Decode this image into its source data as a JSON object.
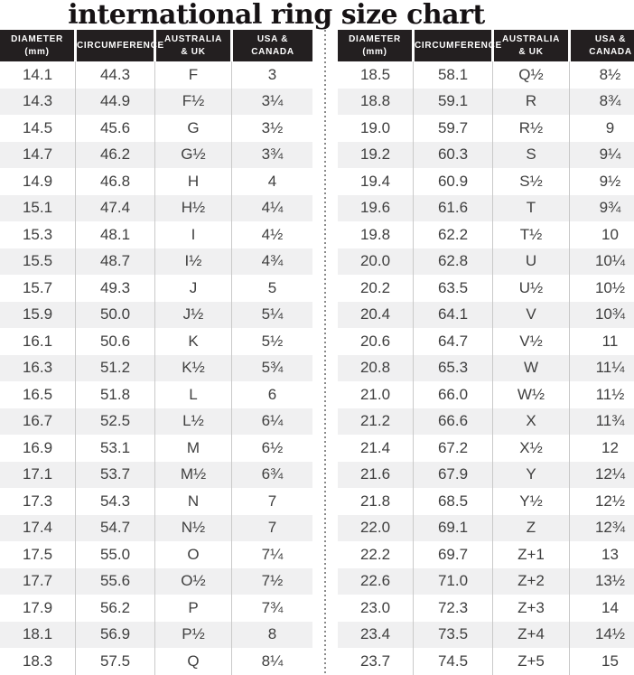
{
  "chart_data": {
    "type": "table",
    "title": "international ring size chart",
    "columns": [
      {
        "label": "DIAMETER (mm)",
        "lines": [
          "DIAMETER",
          "(mm)"
        ]
      },
      {
        "label": "CIRCUMFERENCE",
        "lines": [
          "CIRCUMFERENCE"
        ]
      },
      {
        "label": "AUSTRALIA & UK",
        "lines": [
          "AUSTRALIA",
          "& UK"
        ]
      },
      {
        "label": "USA & CANADA",
        "lines": [
          "USA &",
          "CANADA"
        ]
      }
    ],
    "left_table_rows": [
      [
        "14.1",
        "44.3",
        "F",
        "3"
      ],
      [
        "14.3",
        "44.9",
        "F½",
        "3¼"
      ],
      [
        "14.5",
        "45.6",
        "G",
        "3½"
      ],
      [
        "14.7",
        "46.2",
        "G½",
        "3¾"
      ],
      [
        "14.9",
        "46.8",
        "H",
        "4"
      ],
      [
        "15.1",
        "47.4",
        "H½",
        "4¼"
      ],
      [
        "15.3",
        "48.1",
        "I",
        "4½"
      ],
      [
        "15.5",
        "48.7",
        "I½",
        "4¾"
      ],
      [
        "15.7",
        "49.3",
        "J",
        "5"
      ],
      [
        "15.9",
        "50.0",
        "J½",
        "5¼"
      ],
      [
        "16.1",
        "50.6",
        "K",
        "5½"
      ],
      [
        "16.3",
        "51.2",
        "K½",
        "5¾"
      ],
      [
        "16.5",
        "51.8",
        "L",
        "6"
      ],
      [
        "16.7",
        "52.5",
        "L½",
        "6¼"
      ],
      [
        "16.9",
        "53.1",
        "M",
        "6½"
      ],
      [
        "17.1",
        "53.7",
        "M½",
        "6¾"
      ],
      [
        "17.3",
        "54.3",
        "N",
        "7"
      ],
      [
        "17.4",
        "54.7",
        "N½",
        "7"
      ],
      [
        "17.5",
        "55.0",
        "O",
        "7¼"
      ],
      [
        "17.7",
        "55.6",
        "O½",
        "7½"
      ],
      [
        "17.9",
        "56.2",
        "P",
        "7¾"
      ],
      [
        "18.1",
        "56.9",
        "P½",
        "8"
      ],
      [
        "18.3",
        "57.5",
        "Q",
        "8¼"
      ]
    ],
    "right_table_rows": [
      [
        "18.5",
        "58.1",
        "Q½",
        "8½"
      ],
      [
        "18.8",
        "59.1",
        "R",
        "8¾"
      ],
      [
        "19.0",
        "59.7",
        "R½",
        "9"
      ],
      [
        "19.2",
        "60.3",
        "S",
        "9¼"
      ],
      [
        "19.4",
        "60.9",
        "S½",
        "9½"
      ],
      [
        "19.6",
        "61.6",
        "T",
        "9¾"
      ],
      [
        "19.8",
        "62.2",
        "T½",
        "10"
      ],
      [
        "20.0",
        "62.8",
        "U",
        "10¼"
      ],
      [
        "20.2",
        "63.5",
        "U½",
        "10½"
      ],
      [
        "20.4",
        "64.1",
        "V",
        "10¾"
      ],
      [
        "20.6",
        "64.7",
        "V½",
        "11"
      ],
      [
        "20.8",
        "65.3",
        "W",
        "11¼"
      ],
      [
        "21.0",
        "66.0",
        "W½",
        "11½"
      ],
      [
        "21.2",
        "66.6",
        "X",
        "11¾"
      ],
      [
        "21.4",
        "67.2",
        "X½",
        "12"
      ],
      [
        "21.6",
        "67.9",
        "Y",
        "12¼"
      ],
      [
        "21.8",
        "68.5",
        "Y½",
        "12½"
      ],
      [
        "22.0",
        "69.1",
        "Z",
        "12¾"
      ],
      [
        "22.2",
        "69.7",
        "Z+1",
        "13"
      ],
      [
        "22.6",
        "71.0",
        "Z+2",
        "13½"
      ],
      [
        "23.0",
        "72.3",
        "Z+3",
        "14"
      ],
      [
        "23.4",
        "73.5",
        "Z+4",
        "14½"
      ],
      [
        "23.7",
        "74.5",
        "Z+5",
        "15"
      ]
    ]
  },
  "colors": {
    "header_bg": "#231f20",
    "header_text": "#ffffff",
    "row_alt_bg": "#f0f0f1",
    "body_text": "#3f3f3f",
    "column_divider": "#c9c9c9",
    "dashed_divider": "#8a8a8a",
    "title_text": "#161214"
  }
}
